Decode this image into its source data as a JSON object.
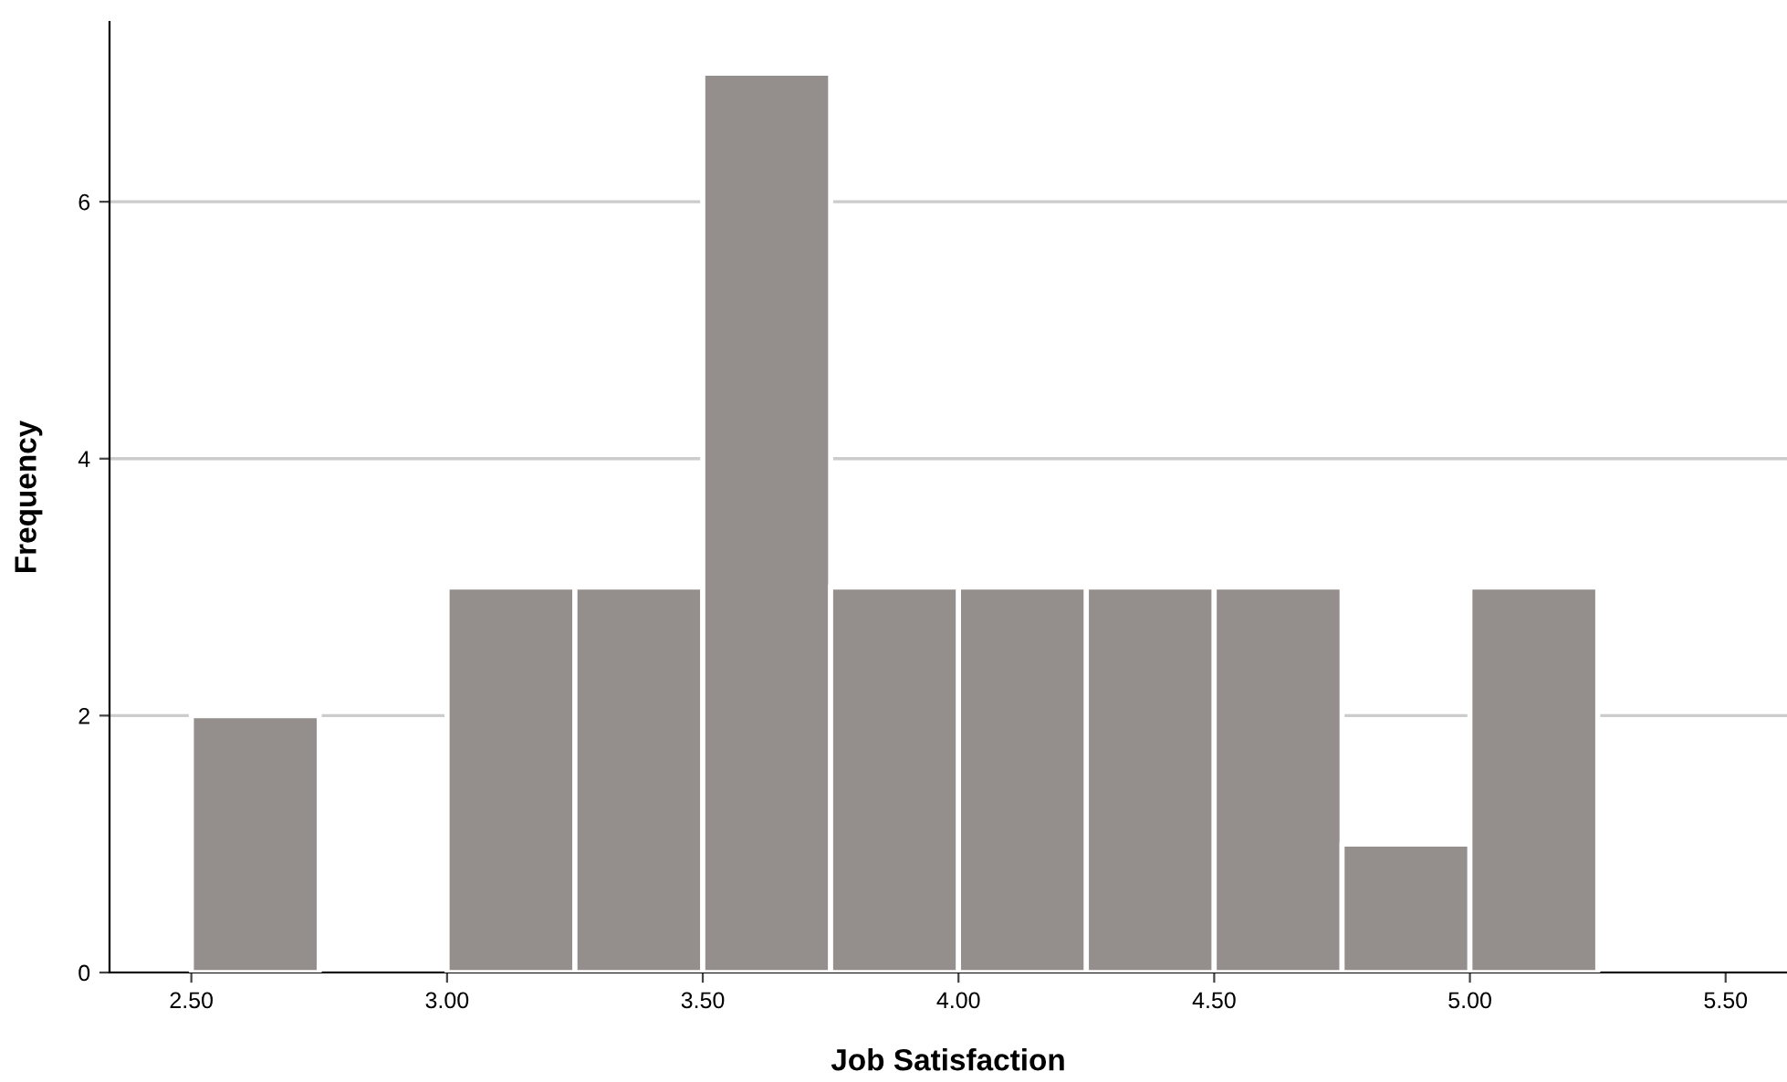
{
  "chart_data": {
    "type": "histogram",
    "xlabel": "Job Satisfaction",
    "ylabel": "Frequency",
    "bins": [
      2.5,
      2.75,
      3.0,
      3.25,
      3.5,
      3.75,
      4.0,
      4.25,
      4.5,
      4.75,
      5.0,
      5.25
    ],
    "values": [
      2,
      0,
      3,
      3,
      7,
      3,
      3,
      3,
      3,
      1,
      3
    ],
    "color": "#948f8d",
    "xlim": [
      2.34,
      5.62
    ],
    "ylim": [
      0,
      7.4
    ],
    "xticks": [
      {
        "value": 2.5,
        "label": "2.50"
      },
      {
        "value": 3.0,
        "label": "3.00"
      },
      {
        "value": 3.5,
        "label": "3.50"
      },
      {
        "value": 4.0,
        "label": "4.00"
      },
      {
        "value": 4.5,
        "label": "4.50"
      },
      {
        "value": 5.0,
        "label": "5.00"
      },
      {
        "value": 5.5,
        "label": "5.50"
      }
    ],
    "yticks": [
      0,
      2,
      4,
      6
    ],
    "grid": "y"
  }
}
